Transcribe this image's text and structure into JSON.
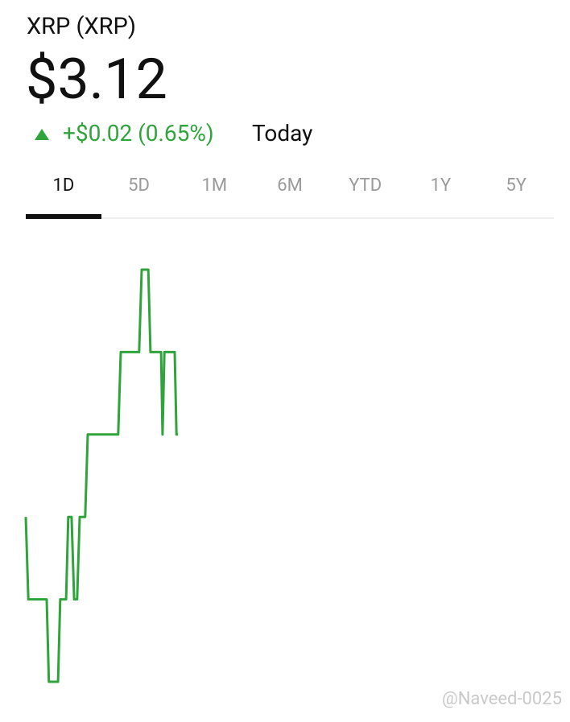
{
  "header": {
    "name": "XRP (XRP)",
    "price": "$3.12",
    "change": "+$0.02 (0.65%)",
    "period": "Today"
  },
  "tabs": {
    "items": [
      "1D",
      "5D",
      "1M",
      "6M",
      "YTD",
      "1Y",
      "5Y"
    ],
    "selected": 0
  },
  "chart_data": {
    "type": "line",
    "color": "#2ea43a",
    "x": [
      0,
      7,
      57,
      63,
      88,
      94,
      110,
      116,
      125,
      132,
      140,
      147,
      162,
      169,
      252,
      259,
      309,
      316,
      334,
      340,
      369,
      373,
      378,
      406,
      411,
      415
    ],
    "values": [
      3.11,
      3.1,
      3.1,
      3.09,
      3.09,
      3.1,
      3.1,
      3.11,
      3.11,
      3.1,
      3.1,
      3.11,
      3.11,
      3.12,
      3.12,
      3.13,
      3.13,
      3.14,
      3.14,
      3.13,
      3.13,
      3.12,
      3.13,
      3.13,
      3.12,
      3.12
    ],
    "xlim": [
      0,
      1440
    ],
    "ylim": [
      3.09,
      3.14
    ]
  },
  "watermark": "@Naveed-0025"
}
